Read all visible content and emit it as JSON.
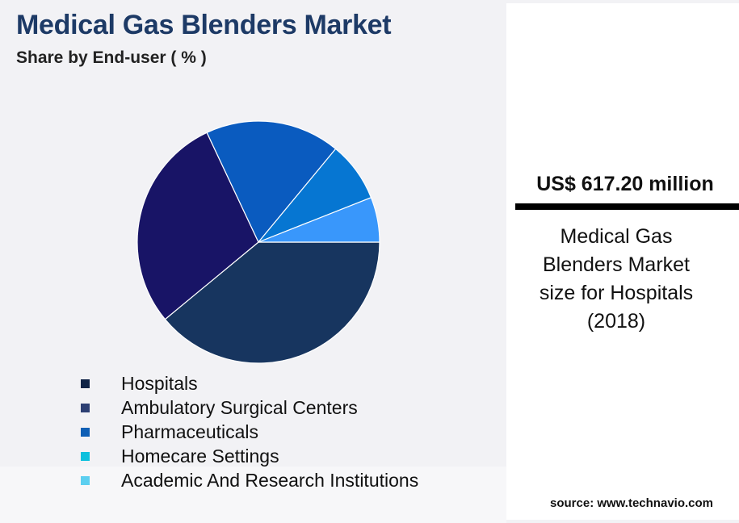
{
  "header": {
    "title": "Medical Gas Blenders Market",
    "subtitle": "Share by End-user ( % )"
  },
  "chart_data": {
    "type": "pie",
    "title": "Medical Gas Blenders Market",
    "subtitle": "Share by End-user ( % )",
    "categories": [
      "Hospitals",
      "Ambulatory Surgical Centers",
      "Pharmaceuticals",
      "Homecare Settings",
      "Academic And Research Institutions"
    ],
    "values": [
      39,
      29,
      18,
      8,
      6
    ],
    "slice_colors": [
      "#17355f",
      "#181466",
      "#0a5bbf",
      "#0676d2",
      "#3997fb"
    ],
    "legend_swatch_colors": [
      "#0e2245",
      "#2d3f73",
      "#0f5fb5",
      "#0cc0dd",
      "#5ccff0"
    ],
    "legend": "bottom-left"
  },
  "headline": {
    "value": "US$ 617.20 million",
    "description": "Medical Gas Blenders Market size for Hospitals (2018)"
  },
  "footer": {
    "source": "source: www.technavio.com"
  }
}
